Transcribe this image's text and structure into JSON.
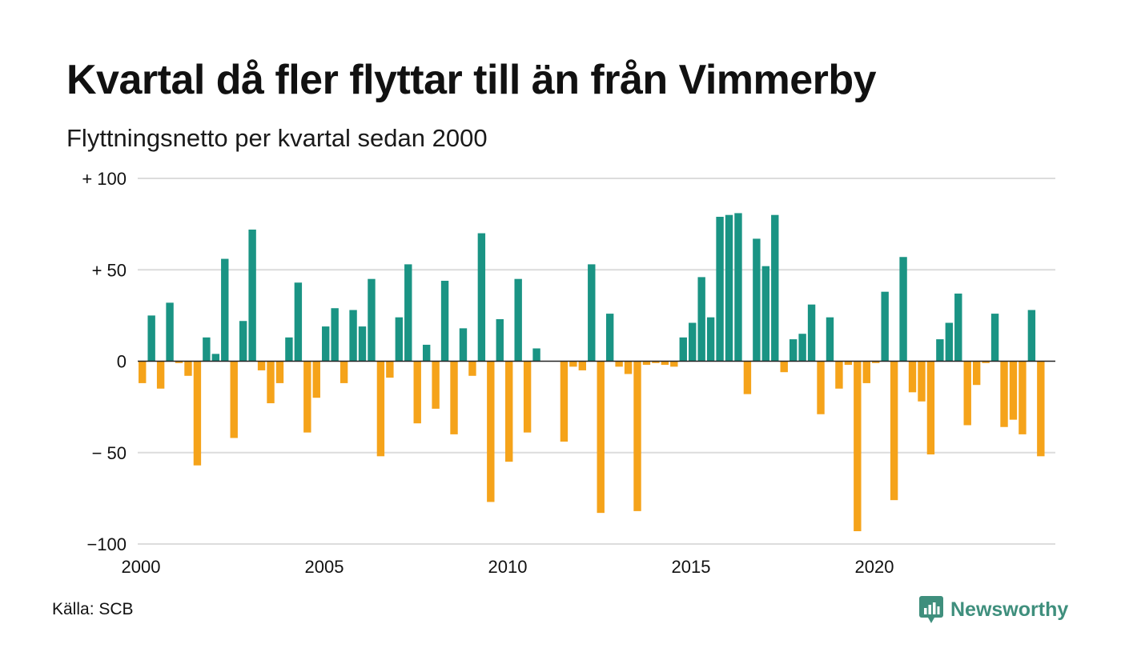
{
  "brand": {
    "name": "Newsworthy",
    "color": "#3f8f7d"
  },
  "source": "Källa: SCB",
  "colors": {
    "positive": "#1a9484",
    "negative": "#f5a31a",
    "grid": "#dcdcdc"
  },
  "chart_data": {
    "type": "bar",
    "title": "Kvartal då fler flyttar till än från Vimmerby",
    "subtitle": "Flyttningsnetto per kvartal sedan 2000",
    "xlabel": "",
    "ylabel": "",
    "ylim": [
      -100,
      100
    ],
    "y_ticks": [
      {
        "value": 100,
        "label": "+ 100"
      },
      {
        "value": 50,
        "label": "+  50"
      },
      {
        "value": 0,
        "label": "0"
      },
      {
        "value": -50,
        "label": "− 50"
      },
      {
        "value": -100,
        "label": "−100"
      }
    ],
    "x_ticks": [
      {
        "value": 2000,
        "label": "2000"
      },
      {
        "value": 2005,
        "label": "2005"
      },
      {
        "value": 2010,
        "label": "2010"
      },
      {
        "value": 2015,
        "label": "2015"
      },
      {
        "value": 2020,
        "label": "2020"
      }
    ],
    "grid": true,
    "legend": "none",
    "start_year": 2000,
    "periods_per_year": 4,
    "values": [
      -12,
      25,
      -15,
      32,
      -1,
      -8,
      -57,
      13,
      4,
      56,
      -42,
      22,
      72,
      -5,
      -23,
      -12,
      13,
      43,
      -39,
      -20,
      19,
      29,
      -12,
      28,
      19,
      45,
      -52,
      -9,
      24,
      53,
      -34,
      9,
      -26,
      44,
      -40,
      18,
      -8,
      70,
      -77,
      23,
      -55,
      45,
      -39,
      7,
      0,
      0,
      -44,
      -3,
      -5,
      53,
      -83,
      26,
      -3,
      -7,
      -82,
      -2,
      -1,
      -2,
      -3,
      13,
      21,
      46,
      24,
      79,
      80,
      81,
      -18,
      67,
      52,
      80,
      -6,
      12,
      15,
      31,
      -29,
      24,
      -15,
      -2,
      -93,
      -12,
      -1,
      38,
      -76,
      57,
      -17,
      -22,
      -51,
      12,
      21,
      37,
      -35,
      -13,
      -1,
      26,
      -36,
      -32,
      -40,
      28,
      -52
    ]
  }
}
